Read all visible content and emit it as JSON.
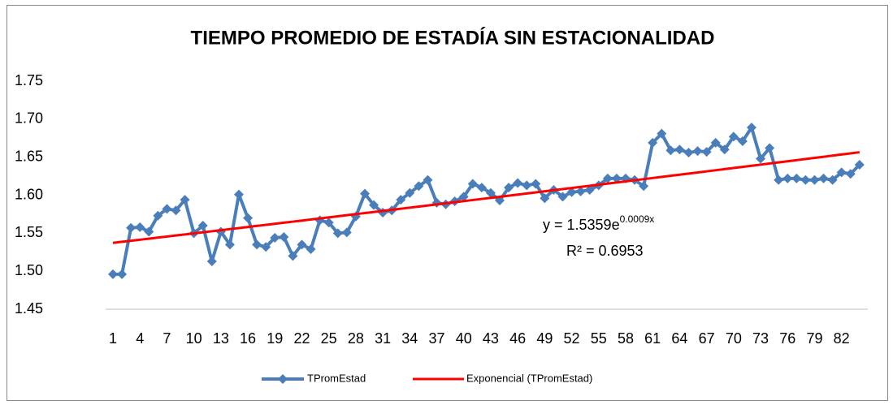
{
  "chart_data": {
    "type": "line",
    "title": "TIEMPO PROMEDIO DE ESTADÍA SIN ESTACIONALIDAD",
    "categories": [
      1,
      null,
      null,
      4,
      null,
      null,
      7,
      null,
      null,
      10,
      null,
      null,
      13,
      null,
      null,
      16,
      null,
      null,
      19,
      null,
      null,
      22,
      null,
      null,
      25,
      null,
      null,
      28,
      null,
      null,
      31,
      null,
      null,
      34,
      null,
      null,
      37,
      null,
      null,
      40,
      null,
      null,
      43,
      null,
      null,
      46,
      null,
      null,
      49,
      null,
      null,
      52,
      null,
      null,
      55,
      null,
      null,
      58,
      null,
      null,
      61,
      null,
      null,
      64,
      null,
      null,
      67,
      null,
      null,
      70,
      null,
      null,
      73,
      null,
      null,
      76,
      null,
      null,
      79,
      null,
      null,
      82,
      null,
      null
    ],
    "series": [
      {
        "name": "TPromEstad",
        "color": "#4a7ebb",
        "values": [
          1.496,
          1.496,
          1.557,
          1.558,
          1.552,
          1.573,
          1.582,
          1.58,
          1.594,
          1.55,
          1.56,
          1.513,
          1.552,
          1.535,
          1.601,
          1.57,
          1.535,
          1.532,
          1.544,
          1.545,
          1.52,
          1.535,
          1.529,
          1.567,
          1.564,
          1.55,
          1.551,
          1.572,
          1.602,
          1.587,
          1.577,
          1.58,
          1.594,
          1.603,
          1.612,
          1.62,
          1.59,
          1.588,
          1.592,
          1.598,
          1.615,
          1.61,
          1.603,
          1.593,
          1.61,
          1.616,
          1.613,
          1.615,
          1.596,
          1.607,
          1.598,
          1.604,
          1.605,
          1.607,
          1.613,
          1.622,
          1.622,
          1.622,
          1.62,
          1.612,
          1.669,
          1.681,
          1.659,
          1.66,
          1.656,
          1.658,
          1.657,
          1.669,
          1.66,
          1.677,
          1.671,
          1.689,
          1.648,
          1.662,
          1.62,
          1.622,
          1.622,
          1.62,
          1.62,
          1.622,
          1.62,
          1.63,
          1.628,
          1.64
        ]
      }
    ],
    "trendline": {
      "name": "Exponencial (TPromEstad)",
      "color": "#ff0000",
      "a": 1.5359,
      "b": 0.0009
    },
    "annotations": [
      "y = 1.5359e",
      "0.0009x",
      "R² = 0.6953"
    ],
    "ylim": [
      1.45,
      1.75
    ],
    "yticks": [
      1.45,
      {
        "value": 1.5,
        "label": "1.50"
      },
      1.55,
      {
        "value": 1.6,
        "label": "1.60"
      },
      1.65,
      {
        "value": 1.7,
        "label": "1.70"
      },
      1.75
    ],
    "grid": false,
    "legend": "bottom"
  }
}
